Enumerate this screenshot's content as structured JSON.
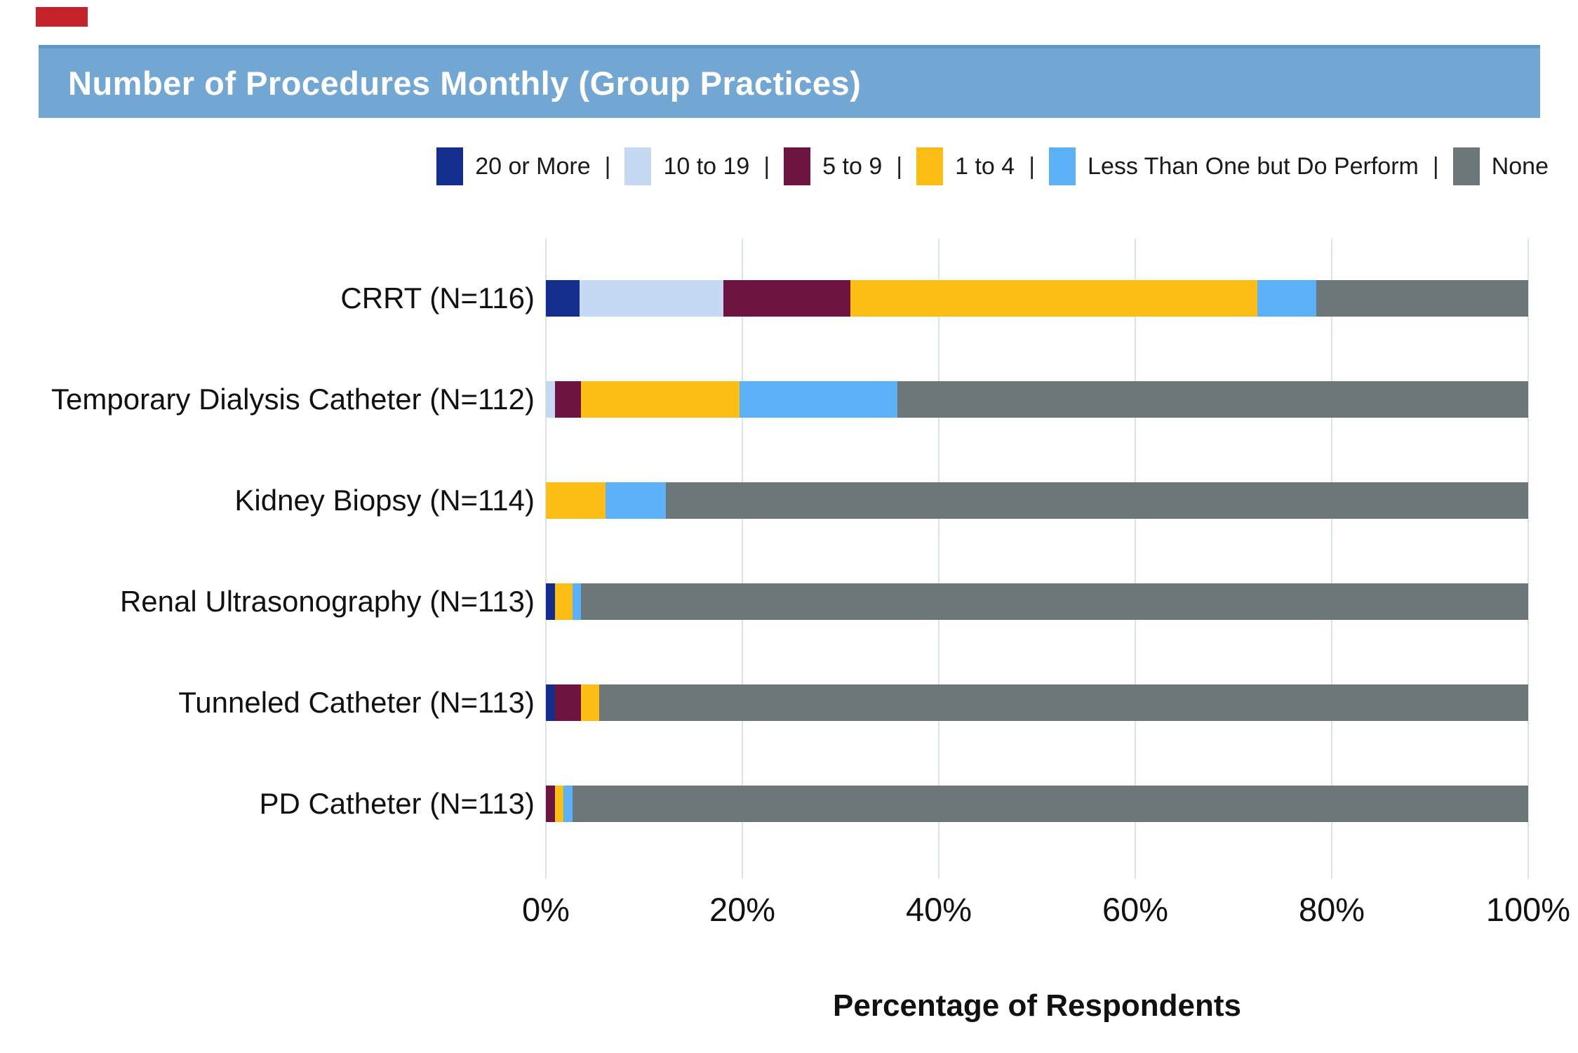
{
  "header": {
    "title": "Number of Procedures Monthly (Group Practices)",
    "bg_color": "#72a7d3",
    "text_color": "#ffffff"
  },
  "decoration": {
    "red_mark_color": "#c5232b"
  },
  "legend": {
    "separator": "|",
    "items": [
      {
        "label": "20 or More",
        "color": "#142e8d"
      },
      {
        "label": "10 to 19",
        "color": "#c6d9f3"
      },
      {
        "label": "5 to 9",
        "color": "#6d1540"
      },
      {
        "label": "1 to 4",
        "color": "#fcbd14"
      },
      {
        "label": "Less Than One but Do Perform",
        "color": "#5bb0f6"
      },
      {
        "label": "None",
        "color": "#6b7778"
      }
    ]
  },
  "chart_data": {
    "type": "bar",
    "orientation": "horizontal",
    "stacked": true,
    "title": "Number of Procedures Monthly (Group Practices)",
    "xlabel": "Percentage of Respondents",
    "ylabel": "",
    "xlim": [
      0,
      100
    ],
    "x_ticks": [
      "0%",
      "20%",
      "40%",
      "60%",
      "80%",
      "100%"
    ],
    "x_tick_values": [
      0,
      20,
      40,
      60,
      80,
      100
    ],
    "grid": true,
    "legend_position": "top",
    "categories": [
      "CRRT (N=116)",
      "Temporary Dialysis Catheter (N=112)",
      "Kidney Biopsy (N=114)",
      "Renal Ultrasonography (N=113)",
      "Tunneled Catheter (N=113)",
      "PD Catheter (N=113)"
    ],
    "series": [
      {
        "name": "20 or More",
        "color": "#142e8d",
        "values": [
          3.4,
          0,
          0,
          0.9,
          0.9,
          0
        ]
      },
      {
        "name": "10 to 19",
        "color": "#c6d9f3",
        "values": [
          14.7,
          0.9,
          0,
          0,
          0,
          0
        ]
      },
      {
        "name": "5 to 9",
        "color": "#6d1540",
        "values": [
          12.9,
          2.7,
          0,
          0,
          2.7,
          0.9
        ]
      },
      {
        "name": "1 to 4",
        "color": "#fcbd14",
        "values": [
          41.4,
          16.1,
          6.1,
          1.8,
          1.8,
          0.9
        ]
      },
      {
        "name": "Less Than One but Do Perform",
        "color": "#5bb0f6",
        "values": [
          6.0,
          16.1,
          6.1,
          0.9,
          0,
          0.9
        ]
      },
      {
        "name": "None",
        "color": "#6b7778",
        "values": [
          21.6,
          64.2,
          87.8,
          96.4,
          94.6,
          97.3
        ]
      }
    ]
  }
}
